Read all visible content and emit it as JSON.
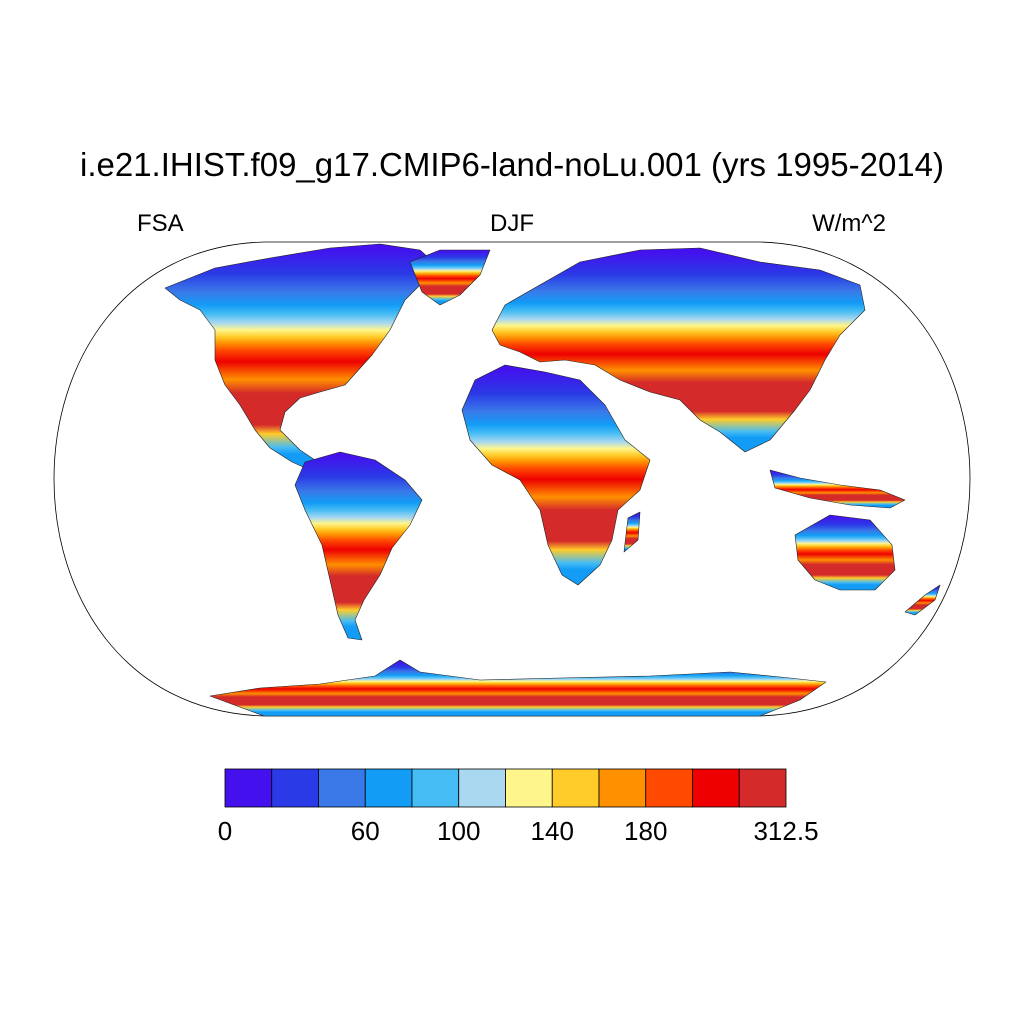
{
  "title": "i.e21.IHIST.f09_g17.CMIP6-land-noLu.001 (yrs 1995-2014)",
  "left_label": "FSA",
  "center_label": "DJF",
  "right_label": "W/m^2",
  "colorbar": {
    "colors": [
      "#4411ee",
      "#2a3ae6",
      "#3a78e8",
      "#129cf6",
      "#46bcf4",
      "#aad8f0",
      "#fef68c",
      "#ffcc2a",
      "#ff9000",
      "#ff4a00",
      "#ee0000",
      "#d42a2a"
    ],
    "tick_labels": [
      {
        "text": "0",
        "boundary": 0
      },
      {
        "text": "60",
        "boundary": 3
      },
      {
        "text": "100",
        "boundary": 5
      },
      {
        "text": "140",
        "boundary": 7
      },
      {
        "text": "180",
        "boundary": 9
      },
      {
        "text": "312.5",
        "boundary": 12
      }
    ]
  }
}
